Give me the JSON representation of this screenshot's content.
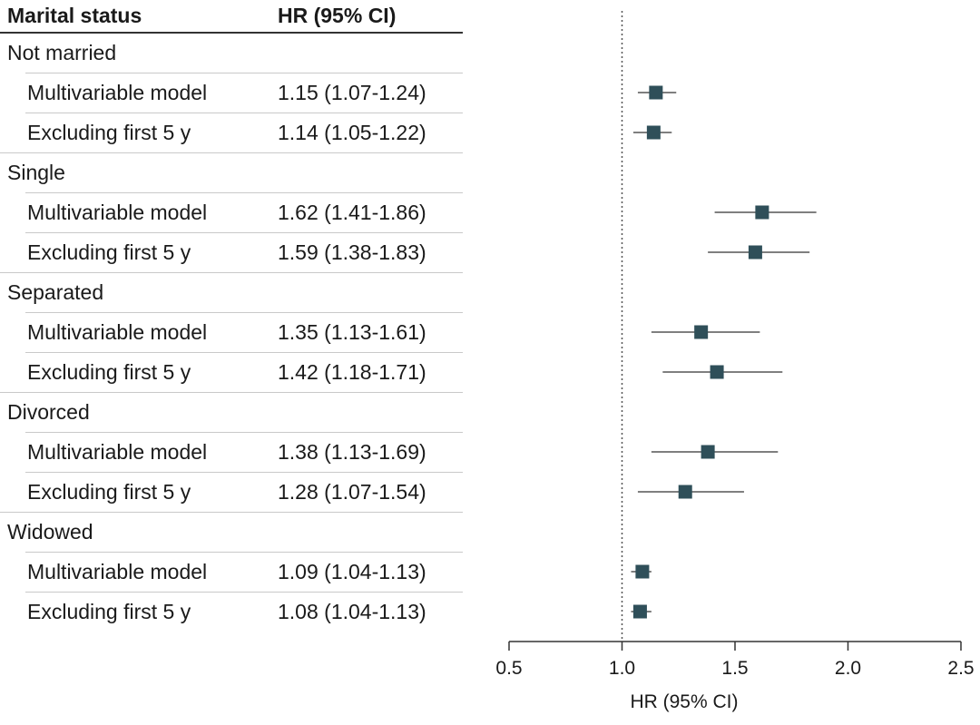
{
  "header": {
    "col1": "Marital status",
    "col2": "HR (95% CI)"
  },
  "colors": {
    "marker": "#2f4f59",
    "ci_line": "#555555",
    "axis": "#333333",
    "reference_line": "#555555"
  },
  "chart_data": {
    "type": "forest",
    "xlabel": "HR (95% CI)",
    "xlim": [
      0.5,
      2.5
    ],
    "xticks": [
      "0.5",
      "1.0",
      "1.5",
      "2.0",
      "2.5"
    ],
    "xtick_values": [
      0.5,
      1.0,
      1.5,
      2.0,
      2.5
    ],
    "reference_value": 1.0,
    "grid": false,
    "groups": [
      {
        "name": "Not married",
        "rows": [
          {
            "label": "Multivariable model",
            "hr_text": "1.15 (1.07-1.24)",
            "hr": 1.15,
            "lo": 1.07,
            "hi": 1.24
          },
          {
            "label": "Excluding first 5 y",
            "hr_text": "1.14 (1.05-1.22)",
            "hr": 1.14,
            "lo": 1.05,
            "hi": 1.22
          }
        ]
      },
      {
        "name": "Single",
        "rows": [
          {
            "label": "Multivariable model",
            "hr_text": "1.62 (1.41-1.86)",
            "hr": 1.62,
            "lo": 1.41,
            "hi": 1.86
          },
          {
            "label": "Excluding first 5 y",
            "hr_text": "1.59 (1.38-1.83)",
            "hr": 1.59,
            "lo": 1.38,
            "hi": 1.83
          }
        ]
      },
      {
        "name": "Separated",
        "rows": [
          {
            "label": "Multivariable model",
            "hr_text": "1.35 (1.13-1.61)",
            "hr": 1.35,
            "lo": 1.13,
            "hi": 1.61
          },
          {
            "label": "Excluding first 5 y",
            "hr_text": "1.42 (1.18-1.71)",
            "hr": 1.42,
            "lo": 1.18,
            "hi": 1.71
          }
        ]
      },
      {
        "name": "Divorced",
        "rows": [
          {
            "label": "Multivariable model",
            "hr_text": "1.38 (1.13-1.69)",
            "hr": 1.38,
            "lo": 1.13,
            "hi": 1.69
          },
          {
            "label": "Excluding first 5 y",
            "hr_text": "1.28 (1.07-1.54)",
            "hr": 1.28,
            "lo": 1.07,
            "hi": 1.54
          }
        ]
      },
      {
        "name": "Widowed",
        "rows": [
          {
            "label": "Multivariable model",
            "hr_text": "1.09 (1.04-1.13)",
            "hr": 1.09,
            "lo": 1.04,
            "hi": 1.13
          },
          {
            "label": "Excluding first 5 y",
            "hr_text": "1.08 (1.04-1.13)",
            "hr": 1.08,
            "lo": 1.04,
            "hi": 1.13
          }
        ]
      }
    ]
  }
}
